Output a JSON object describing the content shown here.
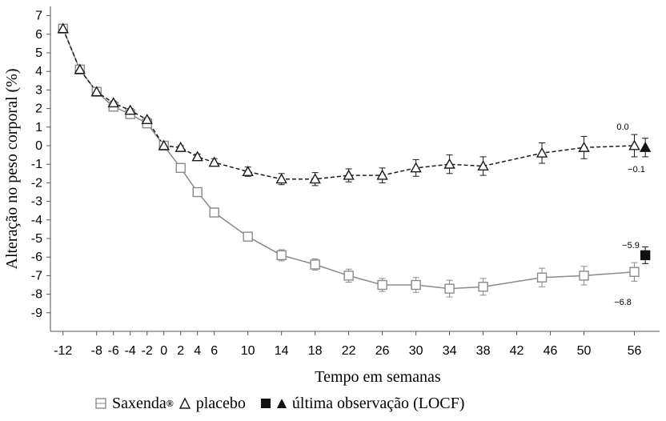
{
  "chart_data": {
    "type": "line",
    "title": "",
    "xlabel": "Tempo em semanas",
    "ylabel": "Alteração no peso corporal (%)",
    "xlim": [
      -13.5,
      59
    ],
    "ylim": [
      -10,
      7.5
    ],
    "xticks": [
      "-12",
      "-8",
      "-6",
      "-4",
      "-2",
      "0",
      "2",
      "4",
      "6",
      "10",
      "14",
      "18",
      "22",
      "26",
      "30",
      "34",
      "38",
      "42",
      "46",
      "50",
      "56"
    ],
    "xtick_values": [
      -12,
      -8,
      -6,
      -4,
      -2,
      0,
      2,
      4,
      6,
      10,
      14,
      18,
      22,
      26,
      30,
      34,
      38,
      42,
      46,
      50,
      56
    ],
    "yticks": [
      "7",
      "6",
      "5",
      "4",
      "3",
      "2",
      "1",
      "0",
      "-1",
      "-2",
      "-3",
      "-4",
      "-5",
      "-6",
      "-7",
      "-8",
      "-9"
    ],
    "ytick_values": [
      7,
      6,
      5,
      4,
      3,
      2,
      1,
      0,
      -1,
      -2,
      -3,
      -4,
      -5,
      -6,
      -7,
      -8,
      -9
    ],
    "grid": false,
    "legend_position": "bottom",
    "series": [
      {
        "name": "Saxenda®",
        "marker": "square-open",
        "line_style": "solid",
        "color": "#8a8a8a",
        "x": [
          -12,
          -10,
          -8,
          -6,
          -4,
          -2,
          0,
          2,
          4,
          6,
          10,
          14,
          18,
          22,
          26,
          30,
          34,
          38,
          45,
          50,
          56
        ],
        "y": [
          6.3,
          4.1,
          2.9,
          2.1,
          1.7,
          1.2,
          0.0,
          -1.2,
          -2.5,
          -3.6,
          -4.9,
          -5.9,
          -6.4,
          -7.0,
          -7.5,
          -7.5,
          -7.7,
          -7.6,
          -7.1,
          -7.0,
          -6.8
        ],
        "err": [
          0.1,
          0.1,
          0.1,
          0.1,
          0.1,
          0.1,
          0.0,
          0.1,
          0.2,
          0.2,
          0.2,
          0.3,
          0.3,
          0.35,
          0.35,
          0.4,
          0.45,
          0.45,
          0.5,
          0.5,
          0.5
        ]
      },
      {
        "name": "placebo",
        "marker": "triangle-open",
        "line_style": "dashed",
        "color": "#1a1a1a",
        "x": [
          -12,
          -10,
          -8,
          -6,
          -4,
          -2,
          0,
          2,
          4,
          6,
          10,
          14,
          18,
          22,
          26,
          30,
          34,
          38,
          45,
          50,
          56
        ],
        "y": [
          6.3,
          4.1,
          2.9,
          2.3,
          1.9,
          1.4,
          0.0,
          -0.1,
          -0.6,
          -0.9,
          -1.4,
          -1.8,
          -1.8,
          -1.6,
          -1.6,
          -1.2,
          -1.0,
          -1.1,
          -0.4,
          -0.1,
          0.0
        ],
        "err": [
          0.1,
          0.1,
          0.1,
          0.1,
          0.1,
          0.1,
          0.0,
          0.1,
          0.15,
          0.2,
          0.25,
          0.3,
          0.35,
          0.35,
          0.4,
          0.45,
          0.5,
          0.5,
          0.55,
          0.6,
          0.6
        ]
      },
      {
        "name": "última observação (LOCF)",
        "points": [
          {
            "marker": "square-filled",
            "x": 57.3,
            "y": -5.9,
            "err": 0.45
          },
          {
            "marker": "triangle-filled",
            "x": 57.3,
            "y": -0.1,
            "err": 0.5
          }
        ]
      }
    ],
    "annotations": [
      "0.0",
      "−0.1",
      "−5.9",
      "−6.8"
    ]
  },
  "legend": {
    "saxenda_label": "Saxenda",
    "saxenda_sup": "®",
    "placebo_label": "placebo",
    "locf_label": "última observação (LOCF)"
  }
}
